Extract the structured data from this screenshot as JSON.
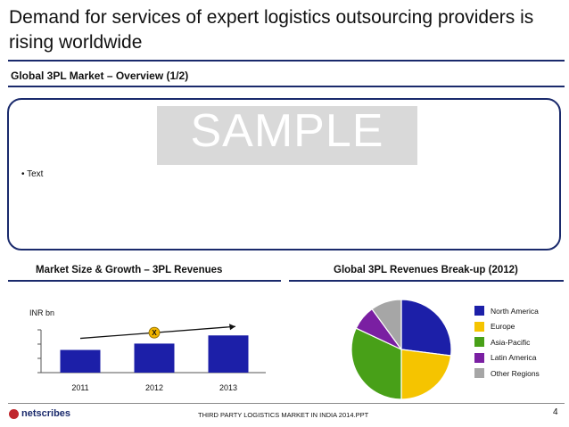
{
  "header": {
    "title": "Demand for services of expert logistics outsourcing providers is rising worldwide",
    "subtitle": "Global 3PL Market – Overview (1/2)"
  },
  "overview": {
    "watermark": "SAMPLE",
    "bullet": "• Text"
  },
  "chart_data": [
    {
      "type": "bar",
      "title": "Market Size & Growth – 3PL Revenues",
      "ylabel": "INR bn",
      "categories": [
        "2011",
        "2012",
        "2013"
      ],
      "values": [
        25,
        32,
        41
      ],
      "growth_marker": "X",
      "colors": {
        "bar": "#1c1fa8",
        "marker": "#f0b400"
      }
    },
    {
      "type": "pie",
      "title": "Global 3PL Revenues Break-up (2012)",
      "slices": [
        {
          "label": "North America",
          "value": 27,
          "color": "#1c1fa8"
        },
        {
          "label": "Europe",
          "value": 23,
          "color": "#f5c400"
        },
        {
          "label": "Asia-Pacific",
          "value": 32,
          "color": "#48a018"
        },
        {
          "label": "Latin America",
          "value": 8,
          "color": "#7a1fa2"
        },
        {
          "label": "Other Regions",
          "value": 10,
          "color": "#a6a6a6"
        }
      ]
    }
  ],
  "footer": {
    "logo": "netscribes",
    "text": "THIRD PARTY LOGISTICS MARKET IN INDIA 2014.PPT",
    "page": "4"
  }
}
